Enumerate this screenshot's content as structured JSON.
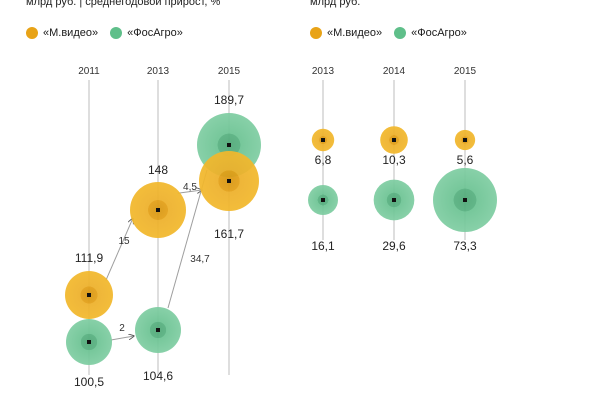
{
  "header": {
    "left_subtitle": "млрд руб. | среднегодовой прирост, %",
    "right_subtitle": "млрд руб."
  },
  "legend": [
    {
      "label": "«М.видео»",
      "color": "#E8A317"
    },
    {
      "label": "«ФосАгро»",
      "color": "#5FBF8A"
    }
  ],
  "colors": {
    "mvideo": "#E8A317",
    "phosagro": "#5FBF8A",
    "line": "#bdbdbd",
    "text": "#1a1a1a"
  },
  "chart_data": [
    {
      "type": "bubble",
      "x": [
        "2011",
        "2013",
        "2015"
      ],
      "series": [
        {
          "name": "«М.видео»",
          "values": [
            111.9,
            148,
            161.7
          ],
          "value_labels": [
            "111,9",
            "148",
            "161,7"
          ]
        },
        {
          "name": "«ФосАгро»",
          "values": [
            100.5,
            104.6,
            189.7
          ],
          "value_labels": [
            "100,5",
            "104,6",
            "189,7"
          ]
        }
      ],
      "growth_annotations": [
        {
          "series": "«М.видео»",
          "from": "2011",
          "to": "2013",
          "label": "15"
        },
        {
          "series": "«М.видео»",
          "from": "2013",
          "to": "2015",
          "label": "4,5"
        },
        {
          "series": "«ФосАгро»",
          "from": "2011",
          "to": "2013",
          "label": "2"
        },
        {
          "series": "«ФосАгро»",
          "from": "2013",
          "to": "2015",
          "label": "34,7"
        }
      ]
    },
    {
      "type": "bubble",
      "x": [
        "2013",
        "2014",
        "2015"
      ],
      "series": [
        {
          "name": "«М.видео»",
          "values": [
            6.8,
            10.3,
            5.6
          ],
          "value_labels": [
            "6,8",
            "10,3",
            "5,6"
          ]
        },
        {
          "name": "«ФосАгро»",
          "values": [
            16.1,
            29.6,
            73.3
          ],
          "value_labels": [
            "16,1",
            "29,6",
            "73,3"
          ]
        }
      ]
    }
  ]
}
